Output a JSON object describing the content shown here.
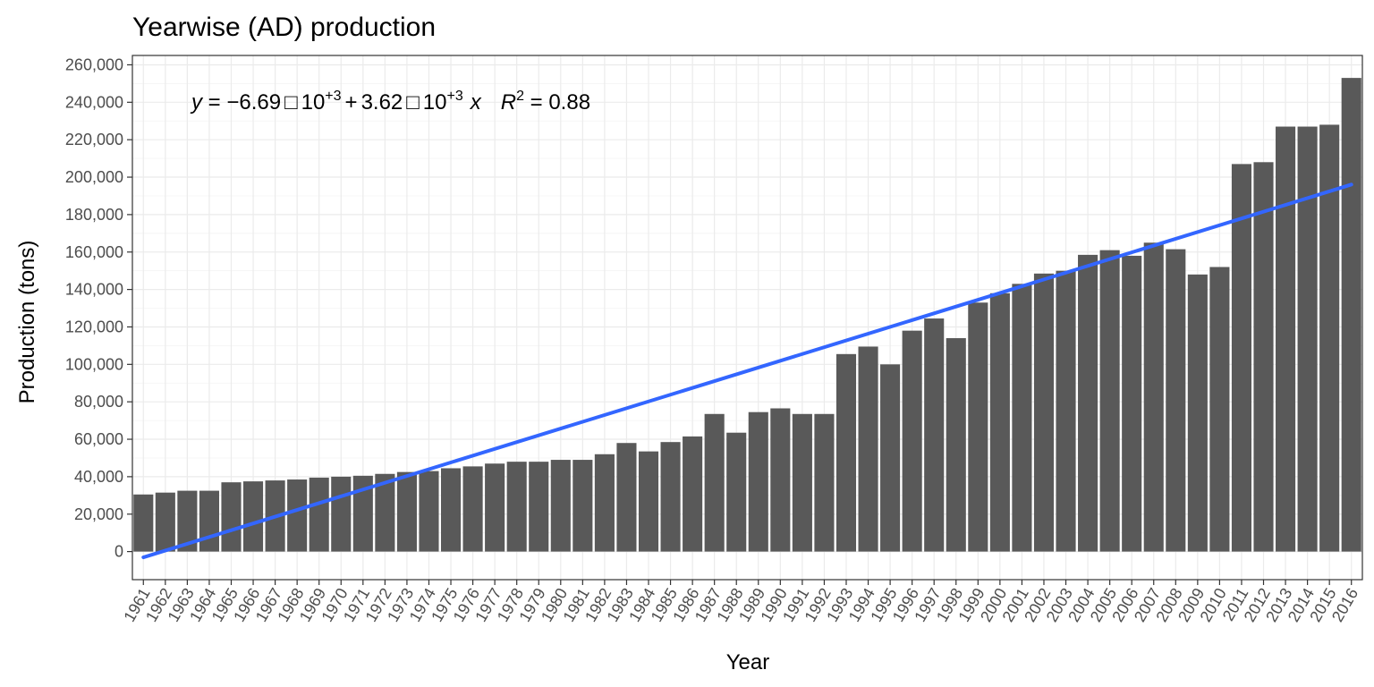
{
  "chart_data": {
    "type": "bar",
    "title": "Yearwise (AD) production",
    "xlabel": "Year",
    "ylabel": "Production (tons)",
    "ylim": [
      -15000,
      265000
    ],
    "yticks": [
      0,
      20000,
      40000,
      60000,
      80000,
      100000,
      120000,
      140000,
      160000,
      180000,
      200000,
      220000,
      240000,
      260000
    ],
    "ytick_labels": [
      "0",
      "20,000",
      "40,000",
      "60,000",
      "80,000",
      "100,000",
      "120,000",
      "140,000",
      "160,000",
      "180,000",
      "200,000",
      "220,000",
      "240,000",
      "260,000"
    ],
    "grid": true,
    "bar_color": "#595959",
    "trend_color": "#3366ff",
    "categories": [
      "1961",
      "1962",
      "1963",
      "1964",
      "1965",
      "1966",
      "1967",
      "1968",
      "1969",
      "1970",
      "1971",
      "1972",
      "1973",
      "1974",
      "1975",
      "1976",
      "1977",
      "1978",
      "1979",
      "1980",
      "1981",
      "1982",
      "1983",
      "1984",
      "1985",
      "1986",
      "1987",
      "1988",
      "1989",
      "1990",
      "1991",
      "1992",
      "1993",
      "1994",
      "1995",
      "1996",
      "1997",
      "1998",
      "1999",
      "2000",
      "2001",
      "2002",
      "2003",
      "2004",
      "2005",
      "2006",
      "2007",
      "2008",
      "2009",
      "2010",
      "2011",
      "2012",
      "2013",
      "2014",
      "2015",
      "2016"
    ],
    "values": [
      30500,
      31500,
      32500,
      32500,
      37000,
      37500,
      38000,
      38500,
      39500,
      40000,
      40500,
      41500,
      42500,
      43000,
      44500,
      45500,
      47000,
      48000,
      48000,
      49000,
      49000,
      52000,
      58000,
      53500,
      58500,
      61500,
      73500,
      63500,
      74500,
      76500,
      73500,
      73500,
      105500,
      109500,
      100000,
      118000,
      124500,
      114000,
      133000,
      138000,
      143000,
      148500,
      150000,
      158500,
      161000,
      158000,
      165000,
      161500,
      148000,
      152000,
      207000,
      208000,
      227000,
      227000,
      228000,
      253000
    ],
    "trend": {
      "intercept": -6690,
      "slope": 3620,
      "equation": {
        "y": "y",
        "eq": " = ",
        "minus": "−",
        "a": "6.69",
        "times": "□",
        "ten": "10",
        "exp": "+3",
        "plus": "+",
        "b": "3.62",
        "x": "x",
        "r": "R",
        "r_exp": "2",
        "r_val": " = 0.88"
      }
    }
  }
}
